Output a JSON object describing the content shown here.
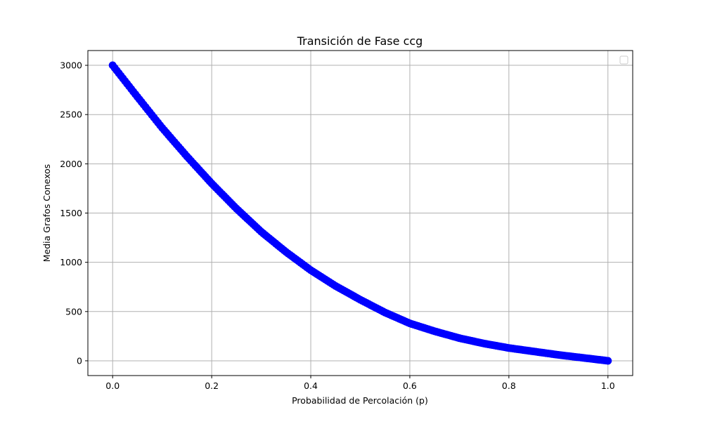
{
  "chart_data": {
    "type": "scatter",
    "title": "Transición de Fase ccg",
    "xlabel": "Probabilidad de Percolación (p)",
    "ylabel": "Media Grafos Conexos",
    "xlim": [
      -0.05,
      1.05
    ],
    "ylim": [
      -150,
      3150
    ],
    "xticks": [
      0.0,
      0.2,
      0.4,
      0.6,
      0.8,
      1.0
    ],
    "xtick_labels": [
      "0.0",
      "0.2",
      "0.4",
      "0.6",
      "0.8",
      "1.0"
    ],
    "yticks": [
      0,
      500,
      1000,
      1500,
      2000,
      2500,
      3000
    ],
    "ytick_labels": [
      "0",
      "500",
      "1000",
      "1500",
      "2000",
      "2500",
      "3000"
    ],
    "grid": true,
    "legend": {
      "position": "upper-right",
      "entries": []
    },
    "series": [
      {
        "color": "#0000ff",
        "marker": "circle",
        "x": [
          0.0,
          0.05,
          0.1,
          0.15,
          0.2,
          0.25,
          0.3,
          0.35,
          0.4,
          0.45,
          0.5,
          0.55,
          0.6,
          0.65,
          0.7,
          0.75,
          0.8,
          0.85,
          0.9,
          0.95,
          1.0
        ],
        "y": [
          3000,
          2680,
          2365,
          2075,
          1800,
          1545,
          1310,
          1105,
          920,
          760,
          620,
          490,
          380,
          300,
          230,
          175,
          130,
          95,
          60,
          30,
          0
        ]
      }
    ]
  }
}
